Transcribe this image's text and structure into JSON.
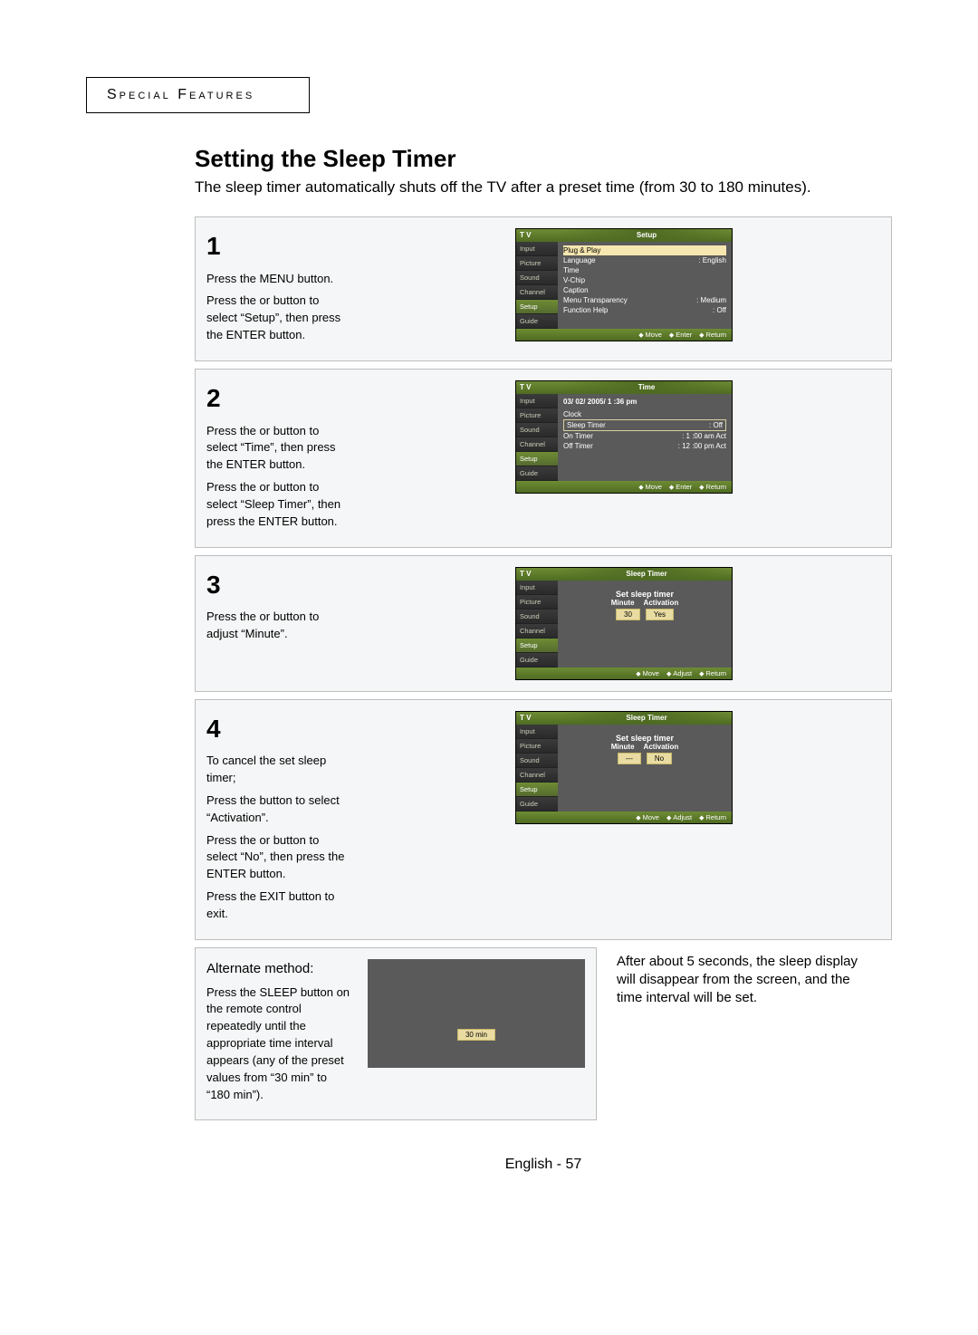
{
  "header": {
    "section": "Special Features"
  },
  "title": "Setting the Sleep Timer",
  "intro": "The sleep timer automatically shuts off the TV after a preset time (from 30 to 180 minutes).",
  "sidebar_items": [
    "Input",
    "Picture",
    "Sound",
    "Channel",
    "Setup",
    "Guide"
  ],
  "steps": [
    {
      "num": "1",
      "text_parts": [
        "Press the MENU button.",
        "Press the  or  button to select “Setup”, then press the ENTER button."
      ],
      "osd": {
        "brand": "T V",
        "title": "Setup",
        "selected_side": 4,
        "rows": [
          {
            "label": "Plug & Play",
            "value": "",
            "sel": true
          },
          {
            "label": "Language",
            "value": ": English"
          },
          {
            "label": "Time",
            "value": ""
          },
          {
            "label": "V-Chip",
            "value": ""
          },
          {
            "label": "Caption",
            "value": ""
          },
          {
            "label": "Menu Transparency",
            "value": ": Medium"
          },
          {
            "label": "Function Help",
            "value": ": Off"
          }
        ],
        "foot": [
          "Move",
          "Enter",
          "Return"
        ]
      }
    },
    {
      "num": "2",
      "text_parts": [
        "Press the  or  button to select “Time”, then press the ENTER button.",
        "Press the  or  button to select “Sleep Timer”, then press the ENTER button."
      ],
      "osd": {
        "brand": "T V",
        "title": "Time",
        "selected_side": 4,
        "heading": "03/ 02/ 2005/ 1 :36 pm",
        "rows": [
          {
            "label": "Clock",
            "value": ""
          },
          {
            "label": "Sleep Timer",
            "value": ": Off",
            "boxed": true
          },
          {
            "label": "On Timer",
            "value": ": 1 :00 am Act"
          },
          {
            "label": "Off Timer",
            "value": ": 12 :00 pm Act"
          }
        ],
        "foot": [
          "Move",
          "Enter",
          "Return"
        ]
      }
    },
    {
      "num": "3",
      "text_parts": [
        "Press the  or  button to adjust “Minute”."
      ],
      "osd": {
        "brand": "T V",
        "title": "Sleep Timer",
        "selected_side": 4,
        "center_title": "Set sleep timer",
        "pill_labels": [
          "Minute",
          "Activation"
        ],
        "pills": [
          "30",
          "Yes"
        ],
        "foot": [
          "Move",
          "Adjust",
          "Return"
        ]
      }
    },
    {
      "num": "4",
      "text_parts": [
        "To cancel the set sleep timer;",
        "Press the  button to select “Activation”.",
        "Press the  or  button to select “No”, then press the ENTER button.",
        "Press the EXIT button to exit."
      ],
      "osd": {
        "brand": "T V",
        "title": "Sleep Timer",
        "selected_side": 4,
        "center_title": "Set sleep timer",
        "pill_labels": [
          "Minute",
          "Activation"
        ],
        "pills": [
          "---",
          "No"
        ],
        "foot": [
          "Move",
          "Adjust",
          "Return"
        ]
      }
    }
  ],
  "alternate": {
    "heading": "Alternate method:",
    "text": "Press the SLEEP button on the remote control repeatedly until the appropriate time interval appears (any of the preset values from “30 min” to “180 min”).",
    "pill": "30 min",
    "note": "After about 5 seconds, the sleep display will disappear from the screen, and the time interval will be set."
  },
  "footer": "English - 57",
  "colors": {
    "accent_green": "#6e8c34",
    "sel_yellow": "#e9dca2",
    "panel_border": "#bdbdbd",
    "panel_bg": "#f5f6f7",
    "osd_bg": "#5a5a5a"
  }
}
